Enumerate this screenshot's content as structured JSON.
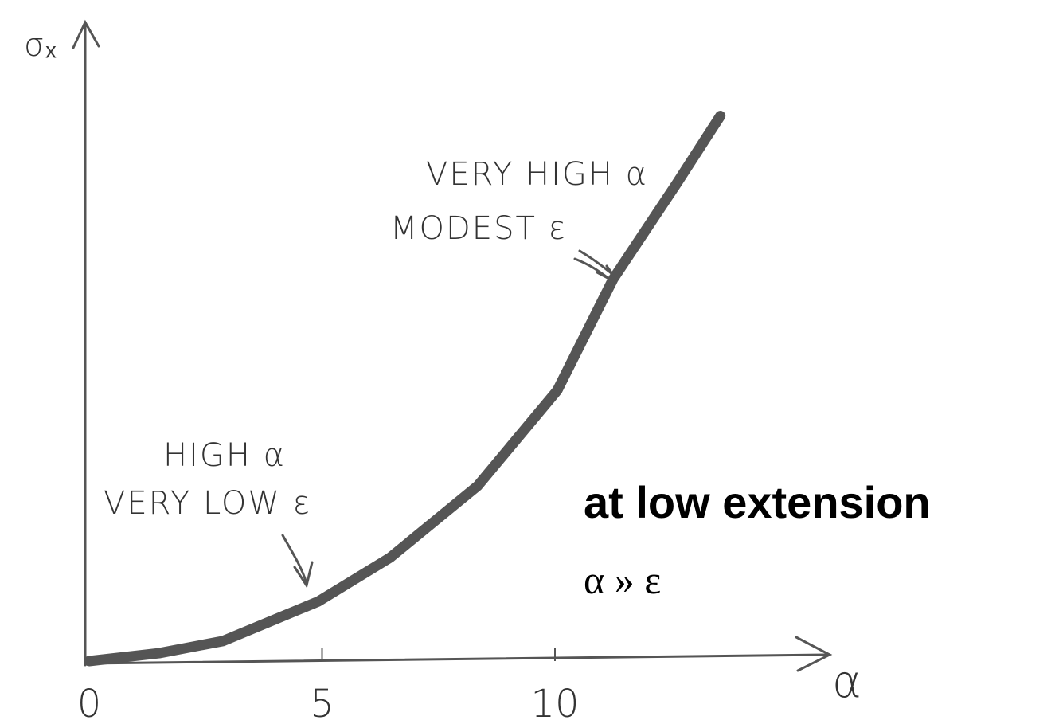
{
  "chart_data": {
    "type": "line",
    "x_label": "α",
    "y_label": "σₓ",
    "x": [
      0,
      1.5,
      2.87,
      4.92,
      6.46,
      8.34,
      10.05,
      11.25,
      12.62,
      13.55
    ],
    "series": [
      {
        "color": "#555555",
        "values": [
          0,
          0.17,
          0.43,
          1.28,
          2.22,
          3.76,
          5.81,
          8.2,
          10.26,
          11.7
        ]
      }
    ],
    "xlim": [
      0,
      16
    ],
    "ylim": [
      0,
      13.8
    ],
    "xticks": [
      0,
      5,
      10
    ],
    "annotations": [
      "VERY HIGH α",
      "MODEST ε",
      "HIGH α",
      "VERY LOW ε",
      "at low extension",
      "α » ε"
    ]
  }
}
